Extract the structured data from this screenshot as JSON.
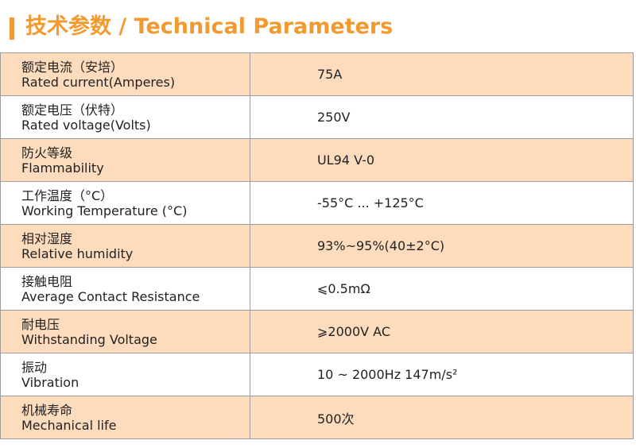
{
  "header": {
    "title": "技术参数 / Technical Parameters",
    "accent_color": "#f29a2e"
  },
  "table": {
    "shade_color": "#fcdcbd",
    "rows": [
      {
        "label_zh": "额定电流（安培）",
        "label_en": "Rated current(Amperes)",
        "value": "75A"
      },
      {
        "label_zh": "额定电压（伏特）",
        "label_en": "Rated voltage(Volts)",
        "value": "250V"
      },
      {
        "label_zh": "防火等级",
        "label_en": "Flammability",
        "value": "UL94 V-0"
      },
      {
        "label_zh": "工作温度（°C）",
        "label_en": "Working Temperature (°C)",
        "value": "-55°C ...  +125°C"
      },
      {
        "label_zh": "相对湿度",
        "label_en": "Relative humidity",
        "value": "93%~95%(40±2°C)"
      },
      {
        "label_zh": "接触电阻",
        "label_en": "Average Contact Resistance",
        "value": "⩽0.5mΩ"
      },
      {
        "label_zh": "耐电压",
        "label_en": "Withstanding Voltage",
        "value": "⩾2000V AC"
      },
      {
        "label_zh": "振动",
        "label_en": "Vibration",
        "value": "10 ~ 2000Hz   147m/s²"
      },
      {
        "label_zh": "机械寿命",
        "label_en": "Mechanical life",
        "value": "500次"
      }
    ]
  }
}
